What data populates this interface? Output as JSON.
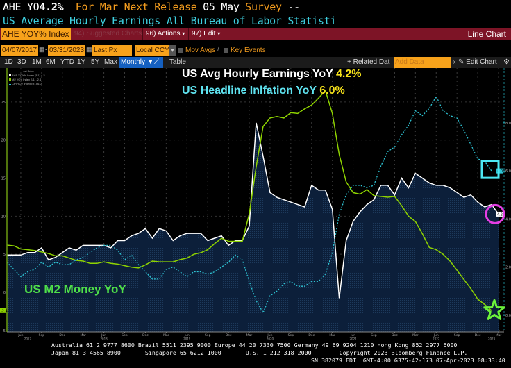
{
  "header": {
    "ticker": "AHE YO",
    "last_value": "4.2%",
    "for_label": "For Mar",
    "next_release_label": "Next Release",
    "next_release_date": "05 May",
    "survey_label": "Survey",
    "survey_value": "--",
    "description": "US Average Hourly Earnings All Bureau of Labor Statisti"
  },
  "toolbar": {
    "security": "AHE YOY% Index",
    "suggested": "94) Suggested Charts",
    "actions": "96) Actions",
    "edit": "97) Edit",
    "chart_type": "Line Chart",
    "start_date": "04/07/2017",
    "dash": "-",
    "end_date": "03/31/2023",
    "price_field": "Last Px",
    "currency": "Local CCY",
    "mov_avgs": "Mov Avgs",
    "key_events": "Key Events",
    "ranges": [
      "1D",
      "3D",
      "1M",
      "6M",
      "YTD",
      "1Y",
      "5Y",
      "Max"
    ],
    "periodicity": "Monthly",
    "table": "Table",
    "related": "+ Related Dat",
    "add_data_placeholder": "Add Data",
    "collapse": "«",
    "edit_chart": "Edit Chart"
  },
  "legend": {
    "title": "Last Price",
    "items": [
      {
        "label": "AHE YOY% Index (R1)",
        "value": "4.2",
        "color": "#ffffff"
      },
      {
        "label": "M2 YOY Index (L1)",
        "value": "-2.4",
        "color": "#8fd400"
      },
      {
        "label": "CPI YOY Index (R1)",
        "value": "6.0",
        "color": "#2ec4d4"
      }
    ]
  },
  "annotations": {
    "ahe_text": "US Avg Hourly Earnings YoY",
    "ahe_value": "4.2%",
    "cpi_text": "US Headline Inlfation YoY",
    "cpi_value": "6.0%",
    "m2_text": "US M2 Money YoY"
  },
  "chart_data": {
    "type": "line",
    "start": "2017-04",
    "frequency": "monthly",
    "x_tick_labels": [
      "Jun",
      "Sep",
      "Dec",
      "Mar",
      "Jun",
      "Sep",
      "Dec",
      "Mar",
      "Jun",
      "Sep",
      "Dec",
      "Mar",
      "Jun",
      "Sep",
      "Dec",
      "Mar",
      "Jun",
      "Sep",
      "Dec",
      "Mar",
      "Jun",
      "Sep",
      "Dec",
      "Mar"
    ],
    "year_labels": [
      "2017",
      "2018",
      "2019",
      "2020",
      "2021",
      "2022",
      "2023"
    ],
    "left_axis": {
      "ticks": [
        -5,
        0,
        5,
        10,
        15,
        20,
        25
      ],
      "range": [
        -5.2,
        27
      ]
    },
    "right_axis": {
      "ticks": [
        "0.0",
        "2.0",
        "4.0",
        "6.0",
        "8.0"
      ],
      "range": [
        -0.7,
        9.5
      ]
    },
    "series": [
      {
        "name": "AHE YOY% Index",
        "axis": "right",
        "color": "#ffffff",
        "style": "area",
        "last": "4.2",
        "values": [
          2.5,
          2.5,
          2.5,
          2.6,
          2.6,
          2.8,
          2.3,
          2.4,
          2.6,
          2.8,
          2.7,
          2.9,
          2.9,
          2.9,
          2.9,
          2.8,
          3.1,
          3.1,
          3.3,
          3.4,
          3.6,
          3.2,
          3.6,
          3.5,
          3.1,
          3.3,
          3.4,
          3.4,
          3.4,
          3.1,
          3.2,
          3.3,
          2.9,
          3.1,
          3.1,
          3.7,
          8.0,
          6.6,
          5.1,
          4.9,
          4.8,
          4.7,
          4.6,
          4.5,
          5.4,
          5.2,
          5.2,
          4.4,
          0.7,
          3.1,
          3.9,
          4.3,
          4.6,
          4.8,
          5.4,
          5.4,
          5.0,
          5.7,
          5.3,
          5.9,
          5.7,
          5.5,
          5.4,
          5.4,
          5.3,
          5.1,
          4.9,
          5.0,
          4.7,
          4.5,
          4.6,
          4.2
        ]
      },
      {
        "name": "M2 YOY Index",
        "axis": "left",
        "color": "#8fd400",
        "style": "line",
        "last": "-2.4",
        "values": [
          6.2,
          6.1,
          5.7,
          5.6,
          5.5,
          5.3,
          5.1,
          4.8,
          4.8,
          4.5,
          4.2,
          4.1,
          3.8,
          3.8,
          4.0,
          3.8,
          3.7,
          3.5,
          3.3,
          3.2,
          3.6,
          4.1,
          4.0,
          4.0,
          4.0,
          4.3,
          4.5,
          5.0,
          5.2,
          5.6,
          6.4,
          7.1,
          6.7,
          6.7,
          6.7,
          10.3,
          16.5,
          21.8,
          22.9,
          23.1,
          22.9,
          23.6,
          23.5,
          24.1,
          24.6,
          25.5,
          26.5,
          23.5,
          18.1,
          14.5,
          13.1,
          12.9,
          13.5,
          12.7,
          12.6,
          12.5,
          12.6,
          11.4,
          10.0,
          9.3,
          7.7,
          5.9,
          5.6,
          5.0,
          4.1,
          2.9,
          1.7,
          0.5,
          -0.9,
          -1.6,
          -2.4
        ]
      },
      {
        "name": "CPI YOY Index",
        "axis": "right",
        "color": "#2ec4d4",
        "style": "dashed",
        "last": "6.0",
        "values": [
          2.2,
          1.9,
          1.6,
          1.8,
          1.9,
          2.2,
          2.0,
          2.2,
          2.1,
          2.1,
          2.3,
          2.4,
          2.6,
          2.8,
          2.9,
          2.9,
          2.7,
          2.3,
          2.5,
          2.1,
          1.8,
          1.5,
          1.5,
          1.9,
          2.0,
          1.8,
          1.6,
          1.8,
          1.8,
          1.7,
          1.8,
          2.0,
          2.2,
          2.5,
          2.3,
          1.4,
          0.6,
          0.1,
          0.8,
          1.0,
          1.3,
          1.4,
          1.2,
          1.2,
          1.4,
          1.4,
          1.7,
          2.6,
          4.2,
          5.0,
          5.4,
          5.4,
          5.3,
          5.4,
          6.2,
          6.8,
          7.0,
          7.5,
          7.9,
          8.5,
          8.3,
          8.6,
          9.1,
          8.5,
          8.3,
          8.2,
          7.7,
          7.1,
          6.5,
          6.4,
          6.0
        ]
      }
    ]
  },
  "footer": {
    "line1": "Australia 61 2 9777 8600 Brazil 5511 2395 9000 Europe 44 20 7330 7500 Germany 49 69 9204 1210 Hong Kong 852 2977 6000",
    "line2": "Japan 81 3 4565 8900       Singapore 65 6212 1000       U.S. 1 212 318 2000        Copyright 2023 Bloomberg Finance L.P.",
    "line3": "SN 382079 EDT  GMT-4:00 G375-42-173 07-Apr-2023 08:33:40"
  }
}
